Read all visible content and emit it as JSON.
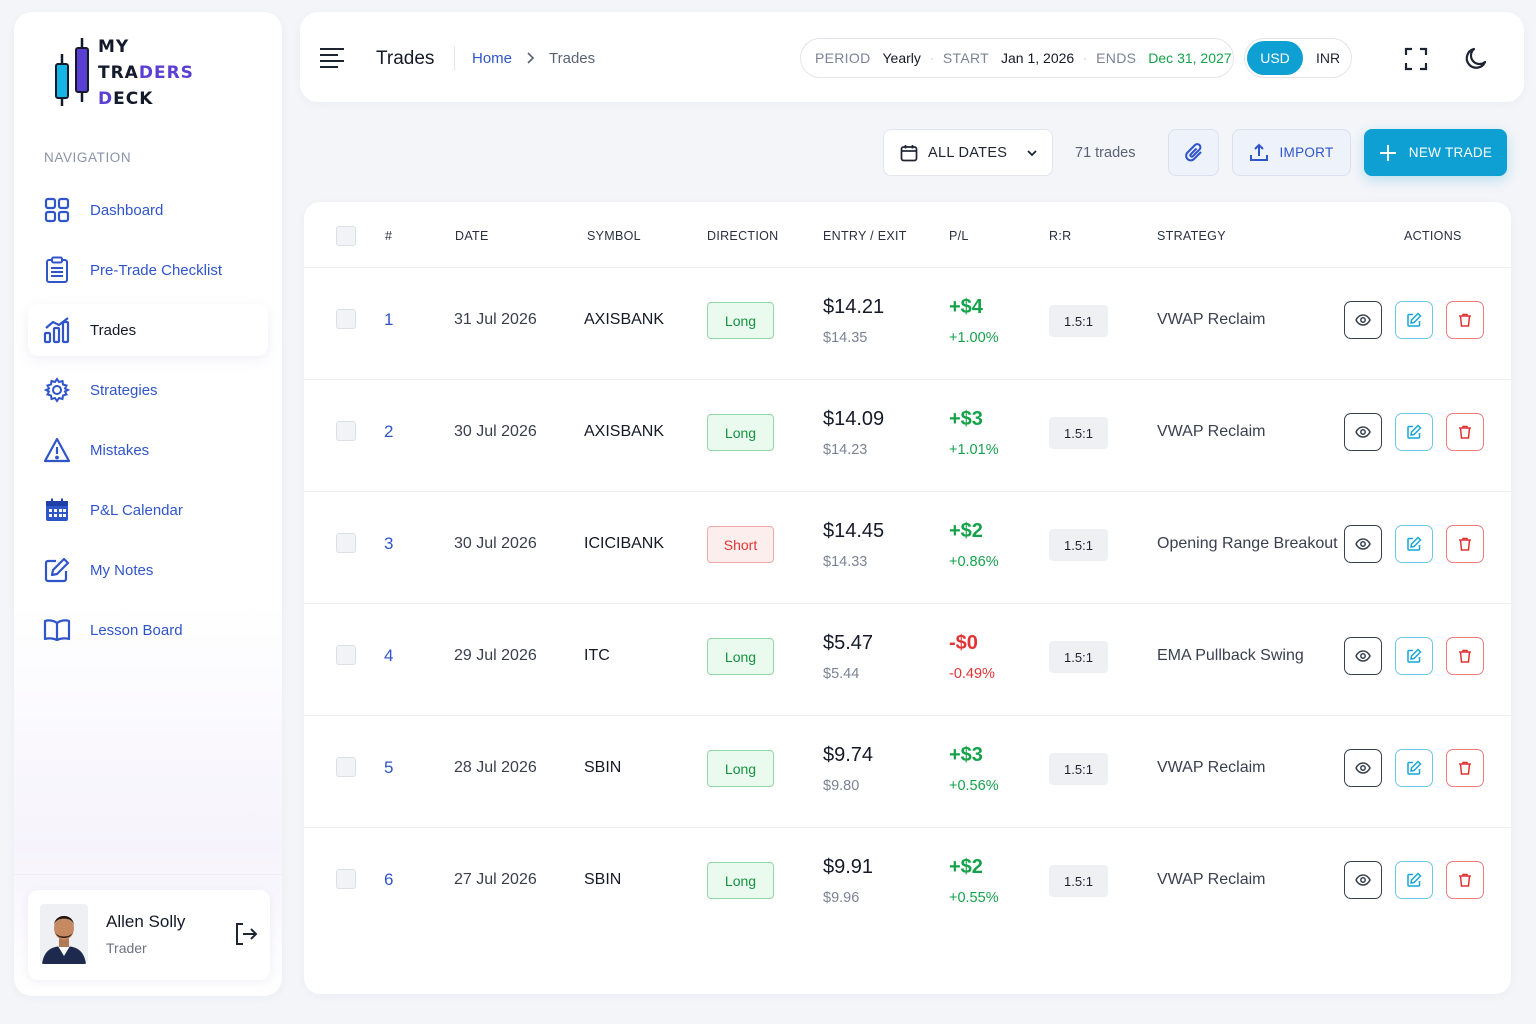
{
  "brand": {
    "line1": "MY",
    "line2_a": "TRA",
    "line2_b": "DERS",
    "line3_a": "D",
    "line3_b": "ECK"
  },
  "sidebar": {
    "heading": "NAVIGATION",
    "items": [
      {
        "label": "Dashboard",
        "icon": "grid-icon",
        "active": false
      },
      {
        "label": "Pre-Trade Checklist",
        "icon": "clipboard-icon",
        "active": false
      },
      {
        "label": "Trades",
        "icon": "bar-chart-icon",
        "active": true
      },
      {
        "label": "Strategies",
        "icon": "gear-icon",
        "active": false
      },
      {
        "label": "Mistakes",
        "icon": "warning-icon",
        "active": false
      },
      {
        "label": "P&L Calendar",
        "icon": "calendar-icon",
        "active": false
      },
      {
        "label": "My Notes",
        "icon": "edit-note-icon",
        "active": false
      },
      {
        "label": "Lesson Board",
        "icon": "book-icon",
        "active": false
      }
    ],
    "user": {
      "name": "Allen Solly",
      "role": "Trader"
    }
  },
  "header": {
    "title": "Trades",
    "breadcrumb": {
      "home": "Home",
      "current": "Trades"
    },
    "period": {
      "period_key": "PERIOD",
      "period_value": "Yearly",
      "start_key": "START",
      "start_value": "Jan 1, 2026",
      "end_key": "ENDS",
      "end_value": "Dec 31, 2027"
    },
    "currency": {
      "selected": "USD",
      "other": "INR"
    }
  },
  "toolbar": {
    "dates_label": "ALL DATES",
    "trade_count": "71 trades",
    "import_label": "IMPORT",
    "new_trade_label": "NEW TRADE"
  },
  "table": {
    "columns": {
      "num": "#",
      "date": "DATE",
      "symbol": "SYMBOL",
      "direction": "DIRECTION",
      "entry_exit": "ENTRY / EXIT",
      "pl": "P/L",
      "rr": "R:R",
      "strategy": "STRATEGY",
      "actions": "ACTIONS"
    },
    "rows": [
      {
        "num": "1",
        "date": "31 Jul 2026",
        "symbol": "AXISBANK",
        "direction": "Long",
        "entry": "$14.21",
        "exit": "$14.35",
        "pl": "+$4",
        "pct": "+1.00%",
        "sign": "pos",
        "rr": "1.5:1",
        "strategy": "VWAP Reclaim"
      },
      {
        "num": "2",
        "date": "30 Jul 2026",
        "symbol": "AXISBANK",
        "direction": "Long",
        "entry": "$14.09",
        "exit": "$14.23",
        "pl": "+$3",
        "pct": "+1.01%",
        "sign": "pos",
        "rr": "1.5:1",
        "strategy": "VWAP Reclaim"
      },
      {
        "num": "3",
        "date": "30 Jul 2026",
        "symbol": "ICICIBANK",
        "direction": "Short",
        "entry": "$14.45",
        "exit": "$14.33",
        "pl": "+$2",
        "pct": "+0.86%",
        "sign": "pos",
        "rr": "1.5:1",
        "strategy": "Opening Range Breakout"
      },
      {
        "num": "4",
        "date": "29 Jul 2026",
        "symbol": "ITC",
        "direction": "Long",
        "entry": "$5.47",
        "exit": "$5.44",
        "pl": "-$0",
        "pct": "-0.49%",
        "sign": "neg",
        "rr": "1.5:1",
        "strategy": "EMA Pullback Swing"
      },
      {
        "num": "5",
        "date": "28 Jul 2026",
        "symbol": "SBIN",
        "direction": "Long",
        "entry": "$9.74",
        "exit": "$9.80",
        "pl": "+$3",
        "pct": "+0.56%",
        "sign": "pos",
        "rr": "1.5:1",
        "strategy": "VWAP Reclaim"
      },
      {
        "num": "6",
        "date": "27 Jul 2026",
        "symbol": "SBIN",
        "direction": "Long",
        "entry": "$9.91",
        "exit": "$9.96",
        "pl": "+$2",
        "pct": "+0.55%",
        "sign": "pos",
        "rr": "1.5:1",
        "strategy": "VWAP Reclaim"
      }
    ]
  },
  "colors": {
    "accent": "#0ea0d2",
    "link": "#2f55c9",
    "positive": "#14a34a",
    "negative": "#e13434",
    "brand_purple": "#5b3fd3"
  }
}
